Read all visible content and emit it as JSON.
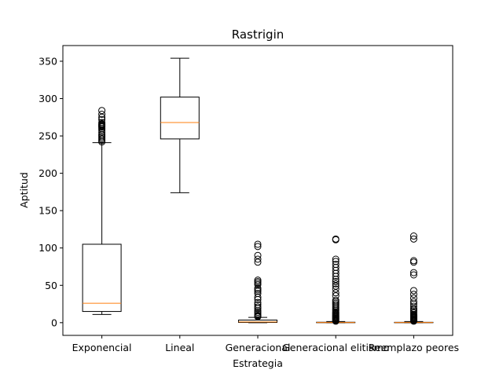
{
  "chart_data": {
    "type": "box",
    "title": "Rastrigin",
    "xlabel": "Estrategia",
    "ylabel": "Aptitud",
    "ylim": [
      -17,
      371
    ],
    "yticks": [
      0,
      50,
      100,
      150,
      200,
      250,
      300,
      350
    ],
    "categories": [
      "Exponencial",
      "Lineal",
      "Generacional",
      "Generacional elitismo",
      "Reemplazo peores"
    ],
    "boxes": [
      {
        "category": "Exponencial",
        "whisker_low": 11,
        "q1": 15,
        "median": 26,
        "q3": 105,
        "whisker_high": 241,
        "outliers": [
          242,
          244,
          246,
          248,
          250,
          252,
          255,
          258,
          260,
          262,
          263,
          264,
          265,
          266,
          268,
          272,
          275,
          279,
          284
        ]
      },
      {
        "category": "Lineal",
        "whisker_low": 174,
        "q1": 246,
        "median": 268,
        "q3": 302,
        "whisker_high": 354,
        "outliers": []
      },
      {
        "category": "Generacional",
        "whisker_low": 0,
        "q1": 0.3,
        "median": 1,
        "q3": 3.5,
        "whisker_high": 7,
        "outliers": [
          8,
          9,
          10,
          12,
          14,
          16,
          19,
          21,
          24,
          27,
          31,
          34,
          39,
          42,
          44,
          46,
          51,
          53,
          55,
          57,
          81,
          85,
          90,
          102,
          105
        ]
      },
      {
        "category": "Generacional elitismo",
        "whisker_low": 0,
        "q1": 0,
        "median": 0.2,
        "q3": 0.6,
        "whisker_high": 1.5,
        "outliers": [
          2,
          3,
          4,
          5,
          6,
          7,
          8,
          9,
          10,
          11,
          12,
          13,
          14,
          16,
          18,
          20,
          22,
          24,
          26,
          28,
          30,
          36,
          40,
          45,
          49,
          52,
          55,
          58,
          62,
          66,
          70,
          74,
          78,
          82,
          85,
          111,
          112
        ]
      },
      {
        "category": "Reemplazo peores",
        "whisker_low": 0,
        "q1": 0,
        "median": 0.2,
        "q3": 0.5,
        "whisker_high": 1.5,
        "outliers": [
          2,
          3,
          4,
          5,
          6,
          7,
          8,
          9,
          10,
          11,
          13,
          15,
          17,
          19,
          22,
          25,
          28,
          33,
          38,
          43,
          64,
          67,
          81,
          83,
          112,
          116
        ]
      }
    ],
    "colors": {
      "box": "#000000",
      "median": "#ff7f0e",
      "outlier": "#000000"
    }
  }
}
